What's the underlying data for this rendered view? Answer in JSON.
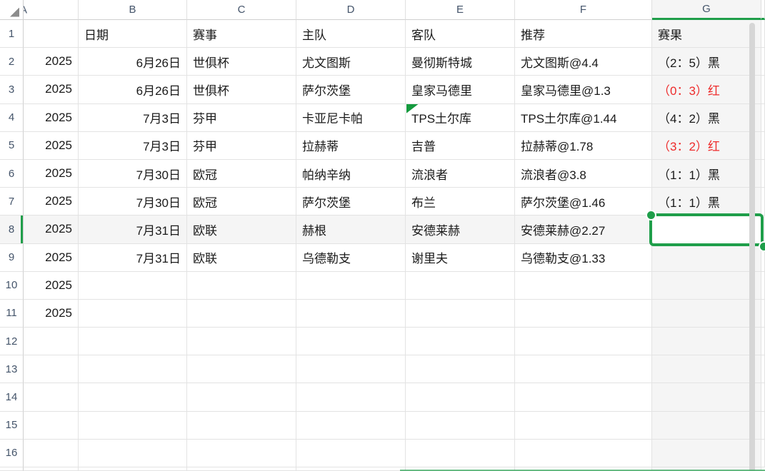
{
  "sheet": {
    "active_cell": "G8",
    "corner_icon": "select-all-triangle",
    "columns": [
      {
        "label": "A",
        "width": 77,
        "align": "right",
        "clipped": true
      },
      {
        "label": "B",
        "width": 152,
        "align": "right"
      },
      {
        "label": "C",
        "width": 153,
        "align": "left"
      },
      {
        "label": "D",
        "width": 153,
        "align": "left"
      },
      {
        "label": "E",
        "width": 153,
        "align": "left"
      },
      {
        "label": "F",
        "width": 192,
        "align": "left"
      },
      {
        "label": "G",
        "width": 153,
        "align": "left",
        "active": true
      },
      {
        "label": "",
        "width": 5,
        "align": "left",
        "active": true,
        "sliver": true
      }
    ],
    "rows": [
      {
        "n": "1",
        "cells": [
          "",
          "日期",
          "赛事",
          "主队",
          "客队",
          "推荐",
          "赛果",
          ""
        ]
      },
      {
        "n": "2",
        "cells": [
          "2025",
          "6月26日",
          "世俱杯",
          "尤文图斯",
          "曼彻斯特城",
          "尤文图斯@4.4",
          "（2：5）黑",
          ""
        ]
      },
      {
        "n": "3",
        "cells": [
          "2025",
          "6月26日",
          "世俱杯",
          "萨尔茨堡",
          "皇家马德里",
          "皇家马德里@1.3",
          "（0：3）红",
          ""
        ]
      },
      {
        "n": "4",
        "cells": [
          "2025",
          "7月3日",
          "芬甲",
          "卡亚尼卡帕",
          "TPS土尔库",
          "TPS土尔库@1.44",
          "（4：2）黑",
          ""
        ]
      },
      {
        "n": "5",
        "cells": [
          "2025",
          "7月3日",
          "芬甲",
          "拉赫蒂",
          "吉普",
          "拉赫蒂@1.78",
          "（3：2）红",
          ""
        ]
      },
      {
        "n": "6",
        "cells": [
          "2025",
          "7月30日",
          "欧冠",
          "帕纳辛纳",
          "流浪者",
          "流浪者@3.8",
          "（1：1）黑",
          ""
        ]
      },
      {
        "n": "7",
        "cells": [
          "2025",
          "7月30日",
          "欧冠",
          "萨尔茨堡",
          "布兰",
          "萨尔茨堡@1.46",
          "（1：1）黑",
          ""
        ]
      },
      {
        "n": "8",
        "cells": [
          "2025",
          "7月31日",
          "欧联",
          "赫根",
          "安德莱赫",
          "安德莱赫@2.27",
          "",
          ""
        ]
      },
      {
        "n": "9",
        "cells": [
          "2025",
          "7月31日",
          "欧联",
          "乌德勒支",
          "谢里夫",
          "乌德勒支@1.33",
          "",
          ""
        ]
      },
      {
        "n": "10",
        "cells": [
          "2025",
          "",
          "",
          "",
          "",
          "",
          "",
          ""
        ]
      },
      {
        "n": "11",
        "cells": [
          "2025",
          "",
          "",
          "",
          "",
          "",
          "",
          ""
        ]
      },
      {
        "n": "12",
        "cells": [
          "",
          "",
          "",
          "",
          "",
          "",
          "",
          ""
        ]
      },
      {
        "n": "13",
        "cells": [
          "",
          "",
          "",
          "",
          "",
          "",
          "",
          ""
        ]
      },
      {
        "n": "14",
        "cells": [
          "",
          "",
          "",
          "",
          "",
          "",
          "",
          ""
        ]
      },
      {
        "n": "15",
        "cells": [
          "",
          "",
          "",
          "",
          "",
          "",
          "",
          ""
        ]
      },
      {
        "n": "16",
        "cells": [
          "",
          "",
          "",
          "",
          "",
          "",
          "",
          ""
        ]
      }
    ],
    "styles": {
      "red_cells": [
        "G3",
        "G5"
      ],
      "error_marker_cell": "E4",
      "highlight_row": "8",
      "highlight_col": "G"
    },
    "colors": {
      "accent_green": "#1f9e4a",
      "marker_green": "#149a3e",
      "red_text": "#ee2b2b",
      "highlight_bg": "#f5f5f5",
      "gridline": "#e3e3e3",
      "header_text": "#44546a",
      "cell_text": "#1a1a1a",
      "scrollbar": "#d6d6d6"
    }
  }
}
